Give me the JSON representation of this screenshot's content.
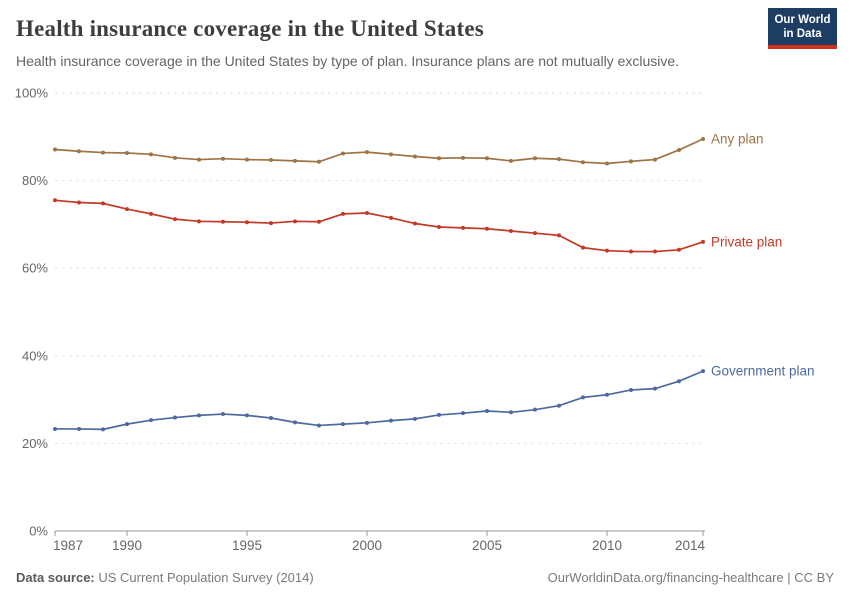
{
  "header": {
    "title": "Health insurance coverage in the United States",
    "subtitle": "Health insurance coverage in the United States by type of plan. Insurance plans are not mutually exclusive.",
    "logo": {
      "line1": "Our World",
      "line2": "in Data",
      "bg_color": "#1d3d63",
      "accent_color": "#d0311d"
    }
  },
  "chart_data": {
    "type": "line",
    "title": "Health insurance coverage in the United States",
    "x": [
      1987,
      1988,
      1989,
      1990,
      1991,
      1992,
      1993,
      1994,
      1995,
      1996,
      1997,
      1998,
      1999,
      2000,
      2001,
      2002,
      2003,
      2004,
      2005,
      2006,
      2007,
      2008,
      2009,
      2010,
      2011,
      2012,
      2013,
      2014
    ],
    "series": [
      {
        "name": "Any plan",
        "color": "#9E7345",
        "values": [
          87.1,
          86.7,
          86.4,
          86.3,
          86.0,
          85.2,
          84.8,
          85.0,
          84.8,
          84.7,
          84.5,
          84.3,
          86.2,
          86.5,
          86.0,
          85.5,
          85.1,
          85.2,
          85.1,
          84.5,
          85.1,
          84.9,
          84.2,
          83.9,
          84.4,
          84.8,
          87.0,
          89.5
        ]
      },
      {
        "name": "Private plan",
        "color": "#C23A26",
        "values": [
          75.5,
          75.0,
          74.8,
          73.5,
          72.4,
          71.2,
          70.7,
          70.6,
          70.5,
          70.3,
          70.7,
          70.6,
          72.4,
          72.6,
          71.5,
          70.2,
          69.4,
          69.2,
          69.0,
          68.5,
          68.0,
          67.5,
          64.7,
          64.0,
          63.8,
          63.8,
          64.2,
          66.0
        ]
      },
      {
        "name": "Government plan",
        "color": "#4C6A9C",
        "values": [
          23.3,
          23.3,
          23.2,
          24.4,
          25.3,
          25.9,
          26.4,
          26.7,
          26.4,
          25.8,
          24.8,
          24.1,
          24.4,
          24.7,
          25.2,
          25.6,
          26.5,
          26.9,
          27.4,
          27.1,
          27.7,
          28.6,
          30.5,
          31.1,
          32.2,
          32.5,
          34.2,
          36.5
        ]
      }
    ],
    "xlabel": "",
    "ylabel": "",
    "ylim": [
      0,
      100
    ],
    "yticks": [
      0,
      20,
      40,
      60,
      80,
      100
    ],
    "ytick_suffix": "%",
    "xticks": [
      1987,
      1990,
      1995,
      2000,
      2005,
      2010,
      2014
    ],
    "grid": "horizontal-dashed",
    "legend_position": "end-of-line-labels",
    "axis_color": "#999999",
    "grid_color": "#e2e2e2",
    "tick_label_color": "#666666"
  },
  "footer": {
    "source_label": "Data source:",
    "source_text": " US Current Population Survey (2014)",
    "attribution": "OurWorldinData.org/financing-healthcare | CC BY"
  }
}
